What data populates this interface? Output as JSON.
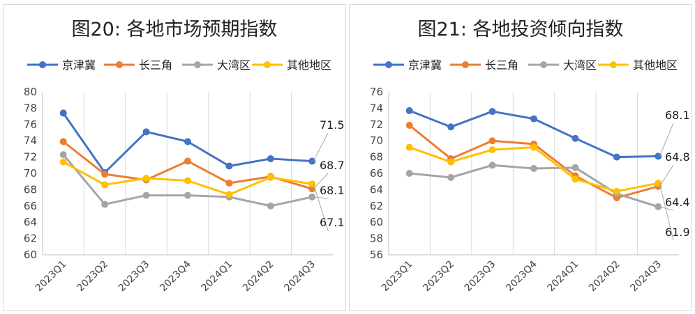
{
  "colors": {
    "京津冀": "#4472c4",
    "长三角": "#ed7d31",
    "大湾区": "#a5a5a5",
    "其他地区": "#ffc000"
  },
  "chart_data": [
    {
      "type": "line",
      "title": "图20: 各地市场预期指数",
      "categories": [
        "2023Q1",
        "2023Q2",
        "2023Q3",
        "2023Q4",
        "2024Q1",
        "2024Q2",
        "2024Q3"
      ],
      "ylim": [
        60,
        80
      ],
      "yticks": [
        60,
        62,
        64,
        66,
        68,
        70,
        72,
        74,
        76,
        78,
        80
      ],
      "grid": "vertical",
      "legend": "top",
      "series": [
        {
          "name": "京津冀",
          "values": [
            77.4,
            70.1,
            75.1,
            73.9,
            70.9,
            71.8,
            71.5
          ]
        },
        {
          "name": "长三角",
          "values": [
            73.9,
            69.9,
            69.2,
            71.5,
            68.8,
            69.6,
            68.1
          ]
        },
        {
          "name": "大湾区",
          "values": [
            72.3,
            66.2,
            67.3,
            67.3,
            67.1,
            66.0,
            67.1
          ]
        },
        {
          "name": "其他地区",
          "values": [
            71.4,
            68.6,
            69.4,
            69.1,
            67.4,
            69.5,
            68.7
          ]
        }
      ],
      "end_labels": [
        "71.5",
        "68.7",
        "68.1",
        "67.1"
      ]
    },
    {
      "type": "line",
      "title": "图21: 各地投资倾向指数",
      "categories": [
        "2023Q1",
        "2023Q2",
        "2023Q3",
        "2023Q4",
        "2024Q1",
        "2024Q2",
        "2024Q3"
      ],
      "ylim": [
        56,
        76
      ],
      "yticks": [
        56,
        58,
        60,
        62,
        64,
        66,
        68,
        70,
        72,
        74,
        76
      ],
      "grid": "vertical",
      "legend": "top",
      "series": [
        {
          "name": "京津冀",
          "values": [
            73.7,
            71.7,
            73.6,
            72.7,
            70.3,
            68.0,
            68.1
          ]
        },
        {
          "name": "长三角",
          "values": [
            71.9,
            67.8,
            70.0,
            69.6,
            65.7,
            63.0,
            64.4
          ]
        },
        {
          "name": "大湾区",
          "values": [
            66.0,
            65.5,
            67.0,
            66.6,
            66.7,
            63.5,
            61.9
          ]
        },
        {
          "name": "其他地区",
          "values": [
            69.2,
            67.4,
            68.9,
            69.2,
            65.3,
            63.8,
            64.8
          ]
        }
      ],
      "end_labels": [
        "68.1",
        "64.8",
        "64.4",
        "61.9"
      ]
    }
  ]
}
